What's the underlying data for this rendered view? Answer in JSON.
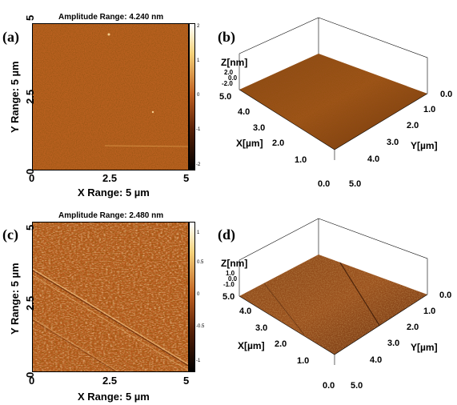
{
  "panels": [
    {
      "label": "(a)",
      "title": "Amplitude Range: 4.240 nm",
      "x_range_label": "X Range: 5 µm",
      "y_range_label": "Y Range: 5 µm",
      "x_ticks": [
        "0",
        "2.5",
        "5"
      ],
      "y_ticks": [
        "5",
        "2.5",
        "0"
      ],
      "colorbar_ticks": [
        "2",
        "1",
        "0",
        "-1",
        "-2"
      ]
    },
    {
      "label": "(b)",
      "z_label": "Z[nm]",
      "z_ticks": [
        "2.0",
        "0.0",
        "-2.0"
      ],
      "x_label": "X[µm]",
      "y_label": "Y[µm]",
      "x_ticks": [
        "5.0",
        "4.0",
        "3.0",
        "2.0",
        "1.0",
        "0.0"
      ],
      "y_ticks": [
        "0.0",
        "1.0",
        "2.0",
        "3.0",
        "4.0",
        "5.0"
      ]
    },
    {
      "label": "(c)",
      "title": "Amplitude Range: 2.480 nm",
      "x_range_label": "X Range: 5 µm",
      "y_range_label": "Y Range: 5 µm",
      "x_ticks": [
        "0",
        "2.5",
        "5"
      ],
      "y_ticks": [
        "5",
        "2.5",
        "0"
      ],
      "colorbar_ticks": [
        "1",
        "0.5",
        "0",
        "-0.5",
        "-1"
      ]
    },
    {
      "label": "(d)",
      "z_label": "Z[nm]",
      "z_ticks": [
        "1.0",
        "0.0",
        "-1.0"
      ],
      "x_label": "X[µm]",
      "y_label": "Y[µm]",
      "x_ticks": [
        "5.0",
        "4.0",
        "3.0",
        "2.0",
        "1.0",
        "0.0"
      ],
      "y_ticks": [
        "0.0",
        "1.0",
        "2.0",
        "3.0",
        "4.0",
        "5.0"
      ]
    }
  ],
  "colors": {
    "surface_base": "#b8601f",
    "surface_dark": "#7a3a10",
    "surface_light": "#d88a40",
    "colorbar_top": "#ffffff",
    "colorbar_mid": "#c06020",
    "colorbar_bottom": "#000000"
  }
}
